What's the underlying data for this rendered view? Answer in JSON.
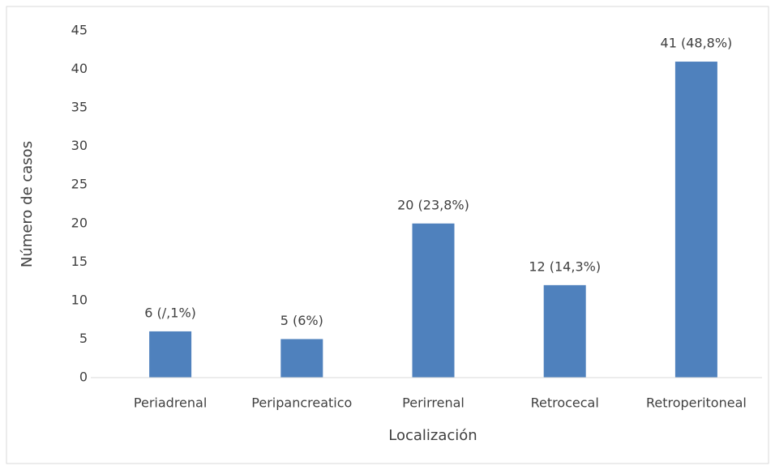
{
  "chart_data": {
    "type": "bar",
    "categories": [
      "Periadrenal",
      "Peripancreatico",
      "Perirrenal",
      "Retrocecal",
      "Retroperitoneal"
    ],
    "values": [
      6,
      5,
      20,
      12,
      41
    ],
    "value_labels": [
      "6 (/,1%)",
      "5 (6%)",
      "20 (23,8%)",
      "12 (14,3%)",
      "41 (48,8%)"
    ],
    "color": "#4f81bd",
    "xlabel": "Localización",
    "ylabel": "Número de casos",
    "ylim": [
      0,
      45
    ],
    "yticks": [
      0,
      5,
      10,
      15,
      20,
      25,
      30,
      35,
      40,
      45
    ],
    "grid": false
  }
}
